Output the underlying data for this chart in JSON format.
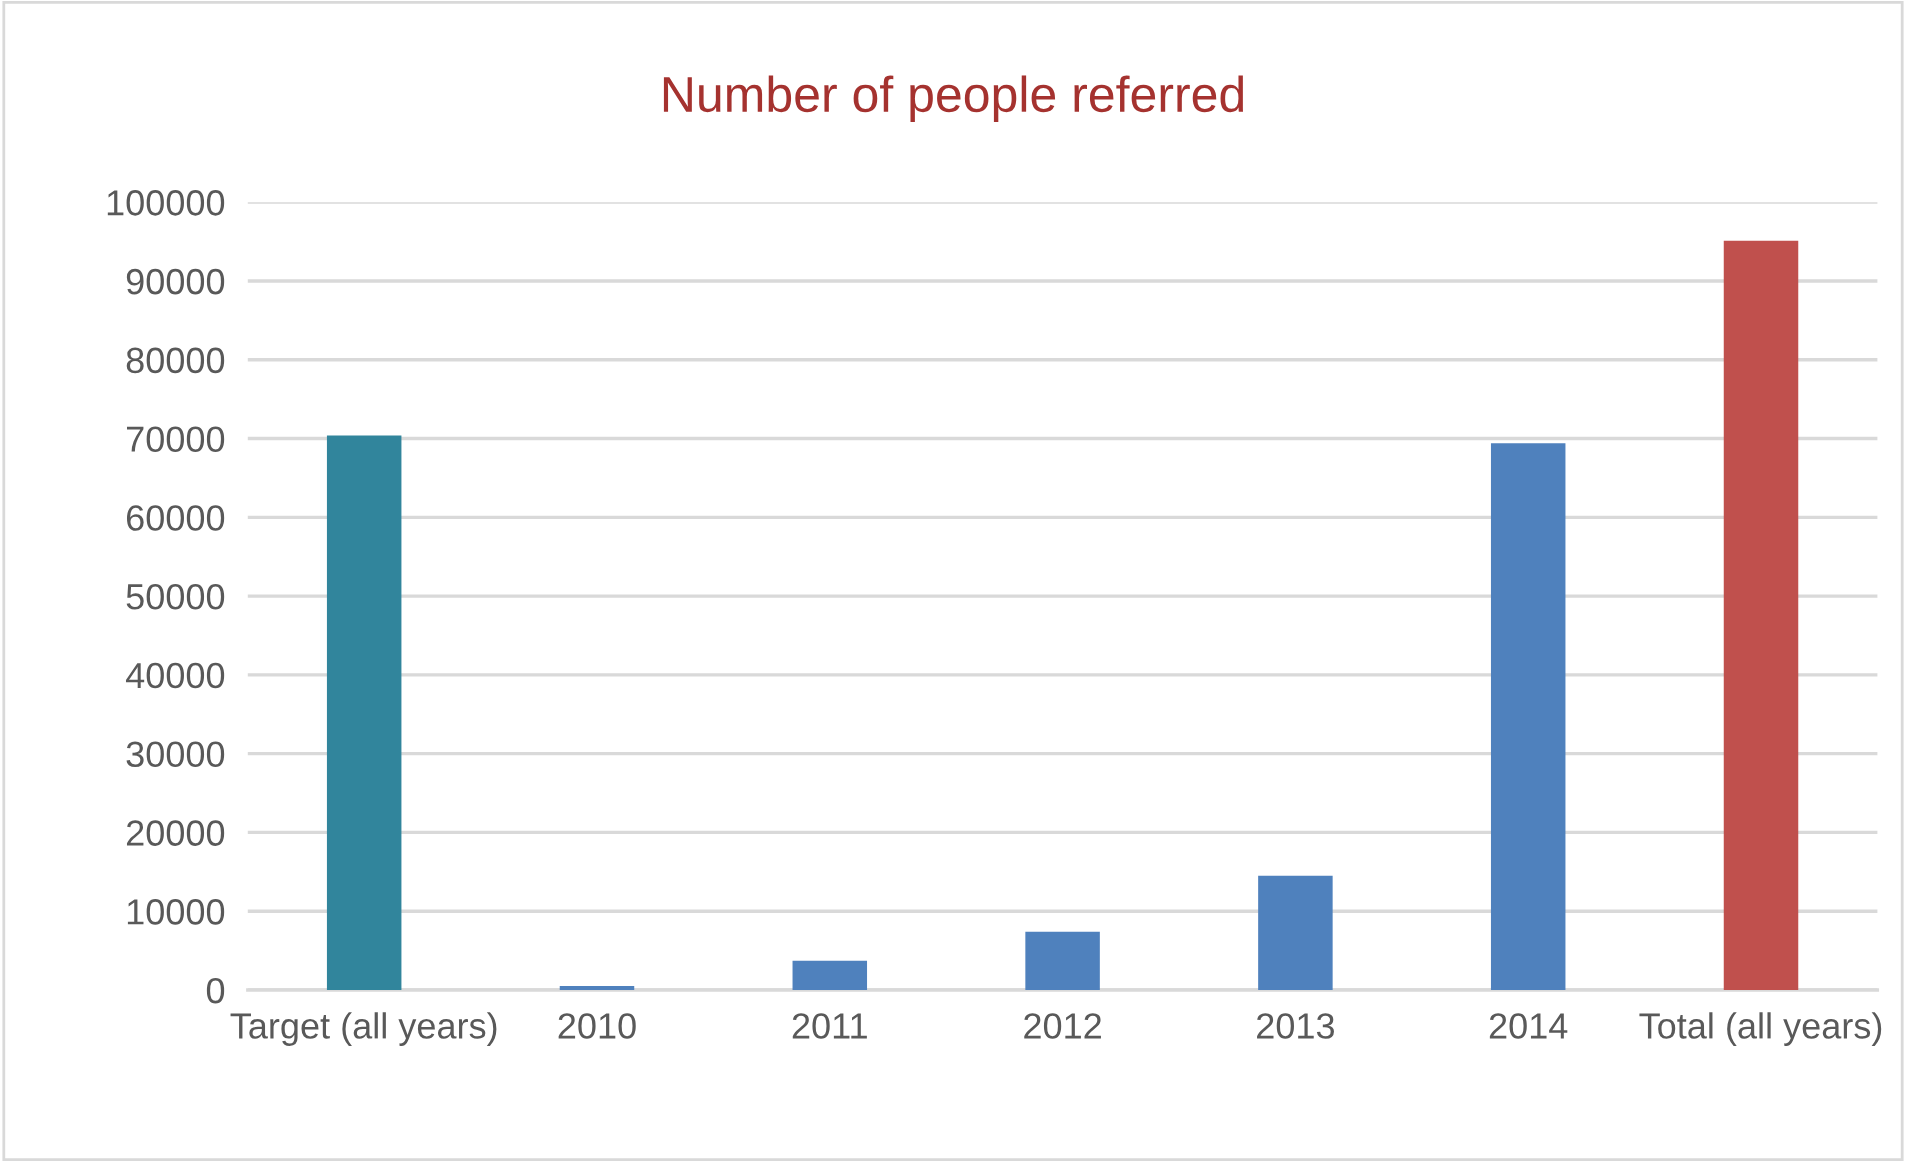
{
  "chart_data": {
    "type": "bar",
    "title": "Number of people referred",
    "categories": [
      "Target (all years)",
      "2010",
      "2011",
      "2012",
      "2013",
      "2014",
      "Total (all years)"
    ],
    "values": [
      70400,
      500,
      3700,
      7400,
      14500,
      69400,
      95100
    ],
    "colors": [
      "#31859c",
      "#4f81bd",
      "#4f81bd",
      "#4f81bd",
      "#4f81bd",
      "#4f81bd",
      "#c0504d"
    ],
    "ylim": [
      0,
      100000
    ],
    "yticks": [
      0,
      10000,
      20000,
      30000,
      40000,
      50000,
      60000,
      70000,
      80000,
      90000,
      100000
    ],
    "grid": "y",
    "legend": false
  }
}
